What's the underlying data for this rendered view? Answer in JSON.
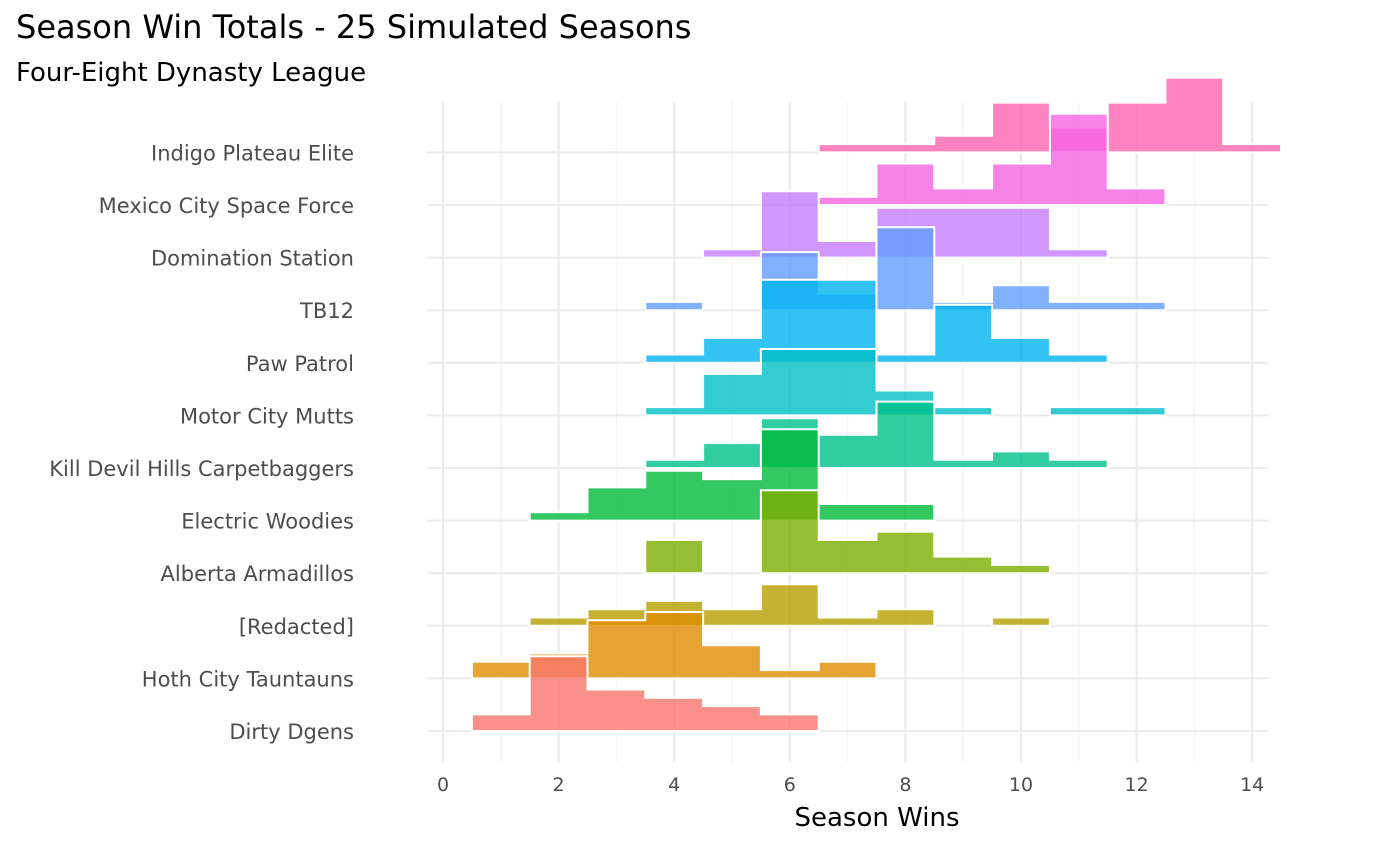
{
  "title": "Season Win Totals - 25 Simulated Seasons",
  "subtitle": "Four-Eight Dynasty League",
  "chart_data": {
    "type": "ridgeline-histogram",
    "title": "Season Win Totals - 25 Simulated Seasons",
    "subtitle": "Four-Eight Dynasty League",
    "xlabel": "Season Wins",
    "ylabel": "",
    "xlim": [
      0,
      14
    ],
    "x_ticks": [
      0,
      2,
      4,
      6,
      8,
      10,
      12,
      14
    ],
    "grid": true,
    "bin_width": 1,
    "series": [
      {
        "name": "Dirty Dgens",
        "color": "#F8766D",
        "wins": [
          1,
          2,
          3,
          4,
          5,
          6
        ],
        "counts": [
          2,
          9,
          5,
          4,
          3,
          2
        ]
      },
      {
        "name": "Hoth City Tauntauns",
        "color": "#DE8C00",
        "wins": [
          1,
          2,
          3,
          4,
          5,
          6,
          7
        ],
        "counts": [
          2,
          3,
          7,
          8,
          4,
          1,
          2
        ]
      },
      {
        "name": "[Redacted]",
        "color": "#B79F00",
        "wins": [
          2,
          3,
          4,
          5,
          6,
          7,
          8,
          10
        ],
        "counts": [
          1,
          2,
          3,
          2,
          5,
          1,
          2,
          1
        ]
      },
      {
        "name": "Alberta Armadillos",
        "color": "#7CAE00",
        "wins": [
          4,
          6,
          7,
          8,
          9,
          10
        ],
        "counts": [
          4,
          10,
          4,
          5,
          2,
          1
        ]
      },
      {
        "name": "Electric Woodies",
        "color": "#00BA38",
        "wins": [
          2,
          3,
          4,
          5,
          6,
          7,
          8
        ],
        "counts": [
          1,
          4,
          6,
          5,
          11,
          2,
          2
        ]
      },
      {
        "name": "Kill Devil Hills Carpetbaggers",
        "color": "#00C08B",
        "wins": [
          4,
          5,
          6,
          7,
          8,
          9,
          10,
          11
        ],
        "counts": [
          1,
          3,
          6,
          4,
          8,
          1,
          2,
          1
        ]
      },
      {
        "name": "Motor City Mutts",
        "color": "#00BFC4",
        "wins": [
          4,
          5,
          6,
          7,
          8,
          9,
          11,
          12
        ],
        "counts": [
          1,
          5,
          8,
          8,
          3,
          1,
          1,
          1
        ]
      },
      {
        "name": "Paw Patrol",
        "color": "#00B4F0",
        "wins": [
          4,
          5,
          6,
          7,
          8,
          9,
          10,
          11
        ],
        "counts": [
          1,
          3,
          10,
          10,
          1,
          7,
          3,
          1
        ]
      },
      {
        "name": "TB12",
        "color": "#619CFF",
        "wins": [
          4,
          6,
          7,
          8,
          9,
          10,
          11,
          12
        ],
        "counts": [
          1,
          7,
          2,
          10,
          1,
          3,
          1,
          1
        ]
      },
      {
        "name": "Domination Station",
        "color": "#C77CFF",
        "wins": [
          5,
          6,
          7,
          8,
          9,
          10,
          11
        ],
        "counts": [
          1,
          8,
          2,
          6,
          6,
          6,
          1
        ]
      },
      {
        "name": "Mexico City Space Force",
        "color": "#F564E3",
        "wins": [
          7,
          8,
          9,
          10,
          11,
          12
        ],
        "counts": [
          1,
          5,
          2,
          5,
          11,
          2
        ]
      },
      {
        "name": "Indigo Plateau Elite",
        "color": "#FF64B0",
        "wins": [
          7,
          8,
          9,
          10,
          11,
          12,
          13,
          14
        ],
        "counts": [
          1,
          1,
          2,
          6,
          3,
          6,
          9,
          1
        ]
      }
    ]
  }
}
